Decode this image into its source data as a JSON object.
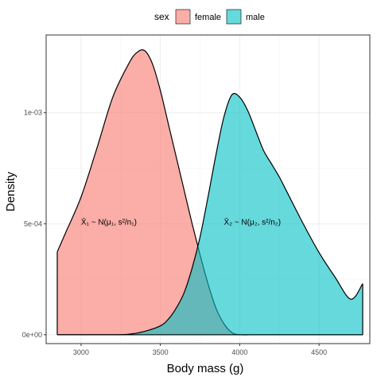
{
  "chart_data": {
    "type": "area",
    "xlabel": "Body mass (g)",
    "ylabel": "Density",
    "xlim": [
      2780,
      4820
    ],
    "ylim": [
      -4e-05,
      0.00135
    ],
    "x_ticks": [
      3000,
      3500,
      4000,
      4500
    ],
    "x_tick_labels": [
      "3000",
      "3500",
      "4000",
      "4500"
    ],
    "y_ticks": [
      0,
      0.0005,
      0.001
    ],
    "y_tick_labels": [
      "0e+00",
      "5e-04",
      "1e-03"
    ],
    "grid": true,
    "legend_position": "top",
    "legend_title": "sex",
    "series": [
      {
        "name": "female",
        "color": "#F8766D",
        "x": [
          2850,
          2900,
          3000,
          3100,
          3200,
          3300,
          3350,
          3400,
          3450,
          3500,
          3550,
          3600,
          3650,
          3700,
          3750,
          3800,
          3850,
          3900,
          3950,
          4000,
          4100,
          4200,
          4300,
          4400,
          4500,
          4600,
          4700,
          4775
        ],
        "y": [
          0.000373,
          0.000455,
          0.00062,
          0.00084,
          0.00107,
          0.00122,
          0.00127,
          0.00128,
          0.00122,
          0.0011,
          0.00095,
          0.0008,
          0.00065,
          0.0005,
          0.00036,
          0.00023,
          0.00012,
          5e-05,
          1e-05,
          0,
          0,
          0,
          0,
          0,
          0,
          0,
          0,
          0
        ]
      },
      {
        "name": "male",
        "color": "#00BFC4",
        "x": [
          2850,
          2900,
          3000,
          3100,
          3200,
          3300,
          3400,
          3500,
          3550,
          3600,
          3650,
          3700,
          3750,
          3800,
          3850,
          3900,
          3950,
          4000,
          4050,
          4100,
          4150,
          4200,
          4250,
          4300,
          4400,
          4500,
          4600,
          4700,
          4775
        ],
        "y": [
          0,
          0,
          0,
          0,
          0,
          2e-06,
          1.5e-05,
          4e-05,
          7e-05,
          0.00012,
          0.00019,
          0.0003,
          0.00044,
          0.00062,
          0.00081,
          0.00098,
          0.00108,
          0.00107,
          0.00101,
          0.00092,
          0.00083,
          0.00077,
          0.00071,
          0.00064,
          0.0005,
          0.00037,
          0.00026,
          0.00016,
          0.00023
        ]
      }
    ],
    "annotations": [
      {
        "x": 3000,
        "y": 0.000495,
        "label": "X̄₁ ~ N(μ₁, s²/n₁)"
      },
      {
        "x": 3900,
        "y": 0.000495,
        "label": "X̄₂ ~ N(μ₂, s²/n₂)"
      }
    ]
  },
  "legend": {
    "title": "sex",
    "items": [
      {
        "label": "female",
        "color": "#F8766D"
      },
      {
        "label": "male",
        "color": "#00BFC4"
      }
    ]
  }
}
